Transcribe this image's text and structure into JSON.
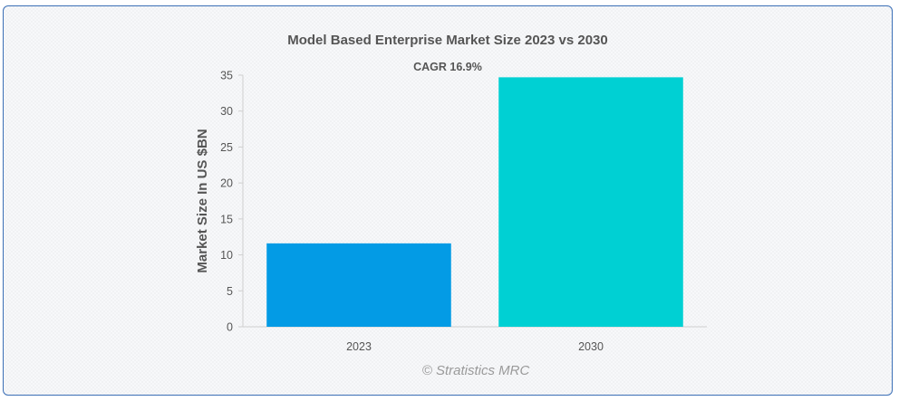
{
  "chart_data": {
    "type": "bar",
    "title": "Model Based Enterprise Market Size 2023 vs 2030",
    "annotation": "CAGR 16.9%",
    "categories": [
      "2023",
      "2030"
    ],
    "values": [
      11.6,
      34.7
    ],
    "colors": [
      "#039be5",
      "#00d0d3"
    ],
    "xlabel": "",
    "ylabel": "Market Size In US $BN",
    "ylim": [
      0,
      35
    ],
    "yticks": [
      "0",
      "5",
      "10",
      "15",
      "20",
      "25",
      "30",
      "35"
    ],
    "grid": false,
    "credit": "© Stratistics MRC"
  }
}
